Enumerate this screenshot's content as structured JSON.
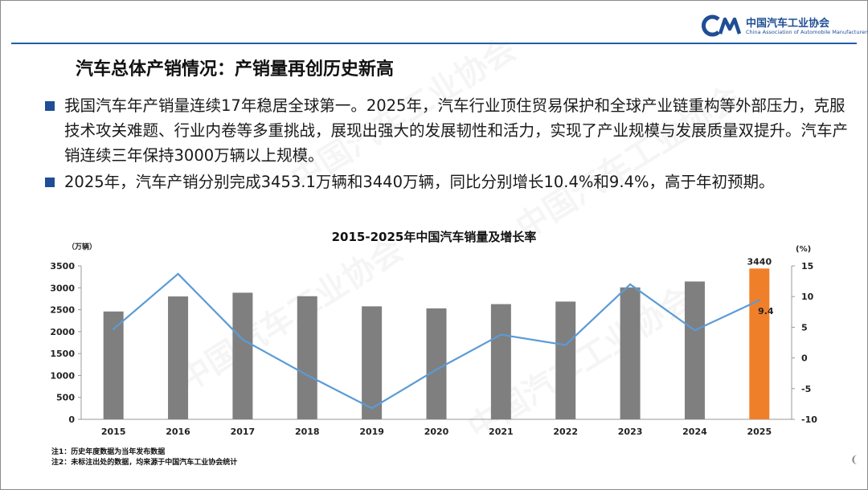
{
  "header": {
    "logo_cn": "中国汽车工业协会",
    "logo_en": "China Association of Automobile Manufacturers",
    "brand_color": "#1f4e96"
  },
  "page_title": "汽车总体产销情况：产销量再创历史新高",
  "bullets": [
    "我国汽车年产销量连续17年稳居全球第一。2025年，汽车行业顶住贸易保护和全球产业链重构等外部压力，克服技术攻关难题、行业内卷等多重挑战，展现出强大的发展韧性和活力，实现了产业规模与发展质量双提升。汽车产销连续三年保持3000万辆以上规模。",
    "2025年，汽车产销分别完成3453.1万辆和3440万辆，同比分别增长10.4%和9.4%，高于年初预期。"
  ],
  "chart_data": {
    "type": "bar",
    "title": "2015-2025年中国汽车销量及增长率",
    "left_unit": "（万辆）",
    "right_unit": "(%)",
    "categories": [
      "2015",
      "2016",
      "2017",
      "2018",
      "2019",
      "2020",
      "2021",
      "2022",
      "2023",
      "2024",
      "2025"
    ],
    "series": [
      {
        "kind": "bar",
        "axis": "left",
        "values": [
          2460,
          2803,
          2888,
          2808,
          2577,
          2531,
          2628,
          2686,
          3009,
          3144,
          3440
        ],
        "color": "#7f7f7f",
        "highlight_color": "#f07f2a"
      },
      {
        "kind": "line",
        "axis": "right",
        "values": [
          4.7,
          13.7,
          3.0,
          -2.8,
          -8.2,
          -1.9,
          3.8,
          2.1,
          12.0,
          4.5,
          9.4
        ],
        "color": "#5b9bd5"
      }
    ],
    "left_ticks": [
      "0",
      "500",
      "1000",
      "1500",
      "2000",
      "2500",
      "3000",
      "3500"
    ],
    "right_ticks": [
      "-10",
      "-5",
      "0",
      "5",
      "10",
      "15"
    ],
    "ylim_left": [
      0,
      3500
    ],
    "ylim_right": [
      -10,
      15
    ],
    "data_labels": {
      "bar_last": "3440",
      "line_last": "9.4"
    },
    "grid": false,
    "legend": "none"
  },
  "notes": [
    "注1：历史年度数据为当年发布数据",
    "注2：未标注出处的数据，均来源于中国汽车工业协会统计"
  ]
}
